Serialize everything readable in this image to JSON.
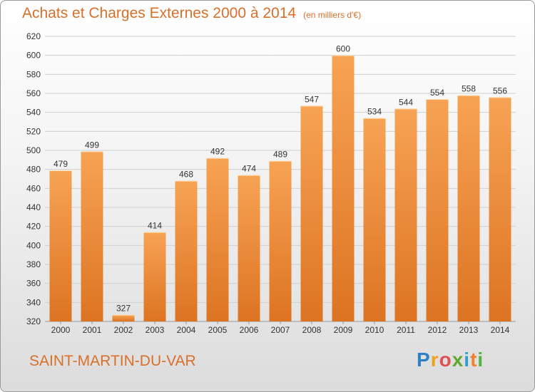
{
  "header": {
    "title": "Achats et Charges Externes 2000 à 2014",
    "subtitle": "(en milliers d'€)"
  },
  "footer": {
    "location": "SAINT-MARTIN-DU-VAR",
    "brand": "Proxiti",
    "brand_letters": [
      {
        "char": "P",
        "color": "#2f7fc4"
      },
      {
        "char": "r",
        "color": "#f0a020"
      },
      {
        "char": "o",
        "color": "#e05050"
      },
      {
        "char": "x",
        "color": "#60a830"
      },
      {
        "char": "i",
        "color": "#2f9fd0"
      },
      {
        "char": "t",
        "color": "#f08030"
      },
      {
        "char": "i",
        "color": "#50b040"
      }
    ]
  },
  "colors": {
    "accent": "#d9702a",
    "bar_light": "#f7a354",
    "bar_dark": "#dc7422"
  },
  "chart_data": {
    "type": "bar",
    "categories": [
      "2000",
      "2001",
      "2002",
      "2003",
      "2004",
      "2005",
      "2006",
      "2007",
      "2008",
      "2009",
      "2010",
      "2011",
      "2012",
      "2013",
      "2014"
    ],
    "values": [
      479,
      499,
      327,
      414,
      468,
      492,
      474,
      489,
      547,
      600,
      534,
      544,
      554,
      558,
      556
    ],
    "title": "Achats et Charges Externes 2000 à 2014",
    "xlabel": "",
    "ylabel": "",
    "ylim": [
      320,
      620
    ],
    "yticks": [
      320,
      340,
      360,
      380,
      400,
      420,
      440,
      460,
      480,
      500,
      520,
      540,
      560,
      580,
      600,
      620
    ],
    "grid": true,
    "data_labels": true
  }
}
